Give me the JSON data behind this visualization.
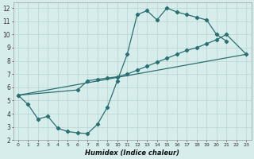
{
  "xlabel": "Humidex (Indice chaleur)",
  "xlim": [
    -0.5,
    23.5
  ],
  "ylim": [
    2,
    12.4
  ],
  "xticks": [
    0,
    1,
    2,
    3,
    4,
    5,
    6,
    7,
    8,
    9,
    10,
    11,
    12,
    13,
    14,
    15,
    16,
    17,
    18,
    19,
    20,
    21,
    22,
    23
  ],
  "yticks": [
    2,
    3,
    4,
    5,
    6,
    7,
    8,
    9,
    10,
    11,
    12
  ],
  "bg_color": "#d6edec",
  "grid_color": "#b8d4d2",
  "line_color": "#2a7070",
  "curve1_x": [
    0,
    1,
    2,
    3,
    4,
    5,
    6,
    7,
    8,
    9,
    10,
    11,
    12,
    13,
    14,
    15,
    16,
    17,
    18,
    19,
    20,
    21
  ],
  "curve1_y": [
    5.4,
    4.7,
    3.6,
    3.8,
    2.9,
    2.65,
    2.55,
    2.5,
    3.2,
    4.5,
    6.5,
    8.5,
    11.5,
    11.8,
    11.1,
    12.0,
    11.7,
    11.5,
    11.3,
    11.1,
    10.0,
    9.5
  ],
  "curve2_x": [
    0,
    23
  ],
  "curve2_y": [
    5.4,
    8.5
  ],
  "curve3_x": [
    0,
    6,
    7,
    8,
    9,
    10,
    11,
    12,
    13,
    14,
    15,
    16,
    17,
    18,
    19,
    20,
    21,
    23
  ],
  "curve3_y": [
    5.4,
    5.8,
    6.5,
    6.6,
    6.7,
    6.8,
    7.0,
    7.3,
    7.6,
    7.9,
    8.2,
    8.5,
    8.8,
    9.0,
    9.3,
    9.6,
    10.0,
    8.5
  ]
}
